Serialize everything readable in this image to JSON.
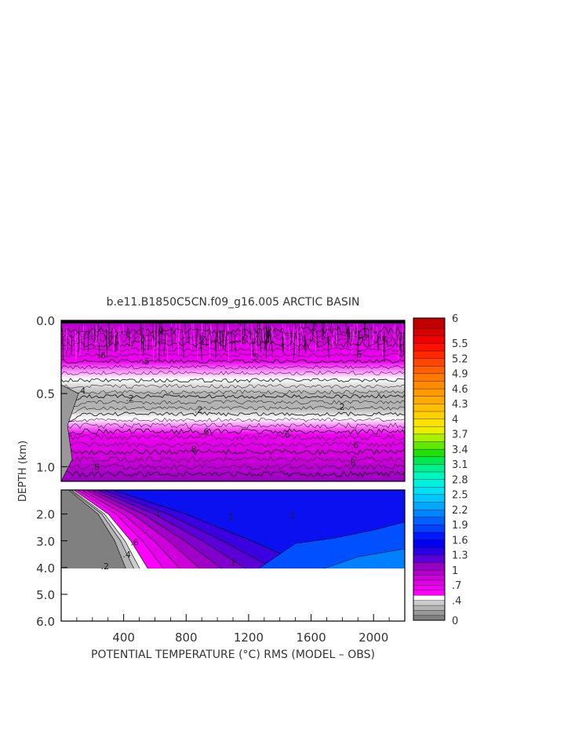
{
  "chart_data": {
    "type": "heatmap",
    "title": "b.e11.B1850C5CN.f09_g16.005 ARCTIC BASIN",
    "xlabel": "POTENTIAL TEMPERATURE (°C) RMS (MODEL – OBS)",
    "ylabel": "DEPTH (km)",
    "xlim": [
      0,
      2200
    ],
    "x_ticks": [
      "400",
      "800",
      "1200",
      "1600",
      "2000"
    ],
    "x_tick_values": [
      400,
      800,
      1200,
      1600,
      2000
    ],
    "upper_panel": {
      "ylim": [
        0.0,
        1.1
      ],
      "y_ticks": [
        "0.0",
        "0.5",
        "1.0"
      ],
      "y_tick_values": [
        0.0,
        0.5,
        1.0
      ],
      "field_profile": [
        {
          "depth": 0.0,
          "value": 1.1
        },
        {
          "depth": 0.06,
          "value": 0.8
        },
        {
          "depth": 0.15,
          "value": 0.7
        },
        {
          "depth": 0.28,
          "value": 0.6
        },
        {
          "depth": 0.4,
          "value": 0.45
        },
        {
          "depth": 0.5,
          "value": 0.2
        },
        {
          "depth": 0.6,
          "value": 0.2
        },
        {
          "depth": 0.67,
          "value": 0.45
        },
        {
          "depth": 0.78,
          "value": 0.6
        },
        {
          "depth": 0.95,
          "value": 0.8
        },
        {
          "depth": 1.1,
          "value": 1.0
        }
      ],
      "contour_labels": [
        {
          "x": 130,
          "depth": 0.48,
          "text": ".4"
        },
        {
          "x": 260,
          "depth": 0.24,
          "text": ".6"
        },
        {
          "x": 540,
          "depth": 0.28,
          "text": ".5"
        },
        {
          "x": 1240,
          "depth": 0.25,
          "text": ".5"
        },
        {
          "x": 1900,
          "depth": 0.23,
          "text": ".5"
        },
        {
          "x": 440,
          "depth": 0.53,
          "text": ".2"
        },
        {
          "x": 880,
          "depth": 0.61,
          "text": ".2"
        },
        {
          "x": 1790,
          "depth": 0.59,
          "text": ".2"
        },
        {
          "x": 920,
          "depth": 0.76,
          "text": ".6"
        },
        {
          "x": 1440,
          "depth": 0.78,
          "text": ".6"
        },
        {
          "x": 1880,
          "depth": 0.85,
          "text": ".6"
        },
        {
          "x": 840,
          "depth": 0.88,
          "text": ".8"
        },
        {
          "x": 1860,
          "depth": 0.97,
          "text": ".8"
        },
        {
          "x": 220,
          "depth": 1.0,
          "text": ".8"
        }
      ]
    },
    "lower_panel": {
      "ylim": [
        1.1,
        6.0
      ],
      "y_ticks": [
        "2.0",
        "3.0",
        "4.0",
        "5.0",
        "6.0"
      ],
      "y_tick_values": [
        2.0,
        3.0,
        4.0,
        5.0,
        6.0
      ],
      "data_bottom_depth": 4.1,
      "field_front": [
        {
          "depth": 1.1,
          "x": 60
        },
        {
          "depth": 2.0,
          "x": 260
        },
        {
          "depth": 3.0,
          "x": 380
        },
        {
          "depth": 4.1,
          "x": 470
        }
      ],
      "contour_labels": [
        {
          "x": 420,
          "depth": 3.5,
          "text": ".4"
        },
        {
          "x": 470,
          "depth": 3.05,
          "text": ".6"
        },
        {
          "x": 280,
          "depth": 3.95,
          "text": ".2"
        },
        {
          "x": 1090,
          "depth": 2.1,
          "text": "1"
        },
        {
          "x": 1480,
          "depth": 2.05,
          "text": "1"
        },
        {
          "x": 620,
          "depth": 1.95,
          "text": "1"
        },
        {
          "x": 1100,
          "depth": 3.8,
          "text": "1"
        }
      ]
    },
    "colorbar": {
      "range": [
        0,
        6
      ],
      "levels": [
        0,
        0.1,
        0.2,
        0.3,
        0.4,
        0.5,
        0.6,
        0.7,
        0.8,
        0.9,
        1.0,
        1.15,
        1.3,
        1.45,
        1.6,
        1.75,
        1.9,
        2.05,
        2.2,
        2.35,
        2.5,
        2.65,
        2.8,
        2.95,
        3.1,
        3.25,
        3.4,
        3.55,
        3.7,
        3.85,
        4.0,
        4.15,
        4.3,
        4.45,
        4.6,
        4.75,
        4.9,
        5.05,
        5.2,
        5.35,
        5.5,
        5.65,
        5.8,
        6.0
      ],
      "colors": [
        "#808080",
        "#999999",
        "#b3b3b3",
        "#cccccc",
        "#ffffff",
        "#ff00ff",
        "#ef00f2",
        "#df00e5",
        "#cc00d9",
        "#b400cc",
        "#9600c0",
        "#5a00d8",
        "#2a00e6",
        "#0000f0",
        "#0018ff",
        "#0040ff",
        "#0060ff",
        "#0085ff",
        "#00a8ff",
        "#00c8ff",
        "#00e0f5",
        "#00f0e0",
        "#00f5c0",
        "#00f090",
        "#00e850",
        "#20e000",
        "#60e800",
        "#a8f000",
        "#e8f000",
        "#ffe000",
        "#ffd000",
        "#ffbf00",
        "#ffaa00",
        "#ff9a00",
        "#ff8a00",
        "#ff7800",
        "#ff6000",
        "#ff4400",
        "#ff2800",
        "#ff1000",
        "#f00000",
        "#d80000",
        "#c00000"
      ],
      "tick_labels": [
        "6",
        "5.5",
        "5.2",
        "4.9",
        "4.6",
        "4.3",
        "4",
        "3.7",
        "3.4",
        "3.1",
        "2.8",
        "2.5",
        "2.2",
        "1.9",
        "1.6",
        "1.3",
        "1",
        ".7",
        ".4",
        "0"
      ],
      "tick_values": [
        6,
        5.5,
        5.2,
        4.9,
        4.6,
        4.3,
        4,
        3.7,
        3.4,
        3.1,
        2.8,
        2.5,
        2.2,
        1.9,
        1.6,
        1.3,
        1,
        0.7,
        0.4,
        0
      ]
    }
  }
}
